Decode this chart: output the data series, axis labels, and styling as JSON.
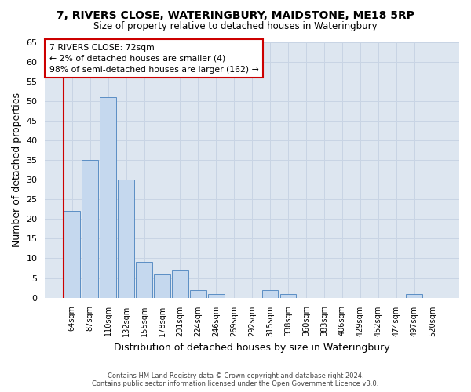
{
  "title1": "7, RIVERS CLOSE, WATERINGBURY, MAIDSTONE, ME18 5RP",
  "title2": "Size of property relative to detached houses in Wateringbury",
  "xlabel": "Distribution of detached houses by size in Wateringbury",
  "ylabel": "Number of detached properties",
  "categories": [
    "64sqm",
    "87sqm",
    "110sqm",
    "132sqm",
    "155sqm",
    "178sqm",
    "201sqm",
    "224sqm",
    "246sqm",
    "269sqm",
    "292sqm",
    "315sqm",
    "338sqm",
    "360sqm",
    "383sqm",
    "406sqm",
    "429sqm",
    "452sqm",
    "474sqm",
    "497sqm",
    "520sqm"
  ],
  "values": [
    22,
    35,
    51,
    30,
    9,
    6,
    7,
    2,
    1,
    0,
    0,
    2,
    1,
    0,
    0,
    0,
    0,
    0,
    0,
    1,
    0
  ],
  "bar_color": "#c5d8ee",
  "bar_edge_color": "#5b8ec4",
  "annotation_text_line1": "7 RIVERS CLOSE: 72sqm",
  "annotation_text_line2": "← 2% of detached houses are smaller (4)",
  "annotation_text_line3": "98% of semi-detached houses are larger (162) →",
  "annotation_box_facecolor": "#ffffff",
  "annotation_box_edgecolor": "#cc0000",
  "vline_color": "#cc0000",
  "grid_color": "#c8d4e4",
  "bg_color": "#dde6f0",
  "fig_bg_color": "#ffffff",
  "ylim": [
    0,
    65
  ],
  "yticks": [
    0,
    5,
    10,
    15,
    20,
    25,
    30,
    35,
    40,
    45,
    50,
    55,
    60,
    65
  ],
  "footer1": "Contains HM Land Registry data © Crown copyright and database right 2024.",
  "footer2": "Contains public sector information licensed under the Open Government Licence v3.0."
}
